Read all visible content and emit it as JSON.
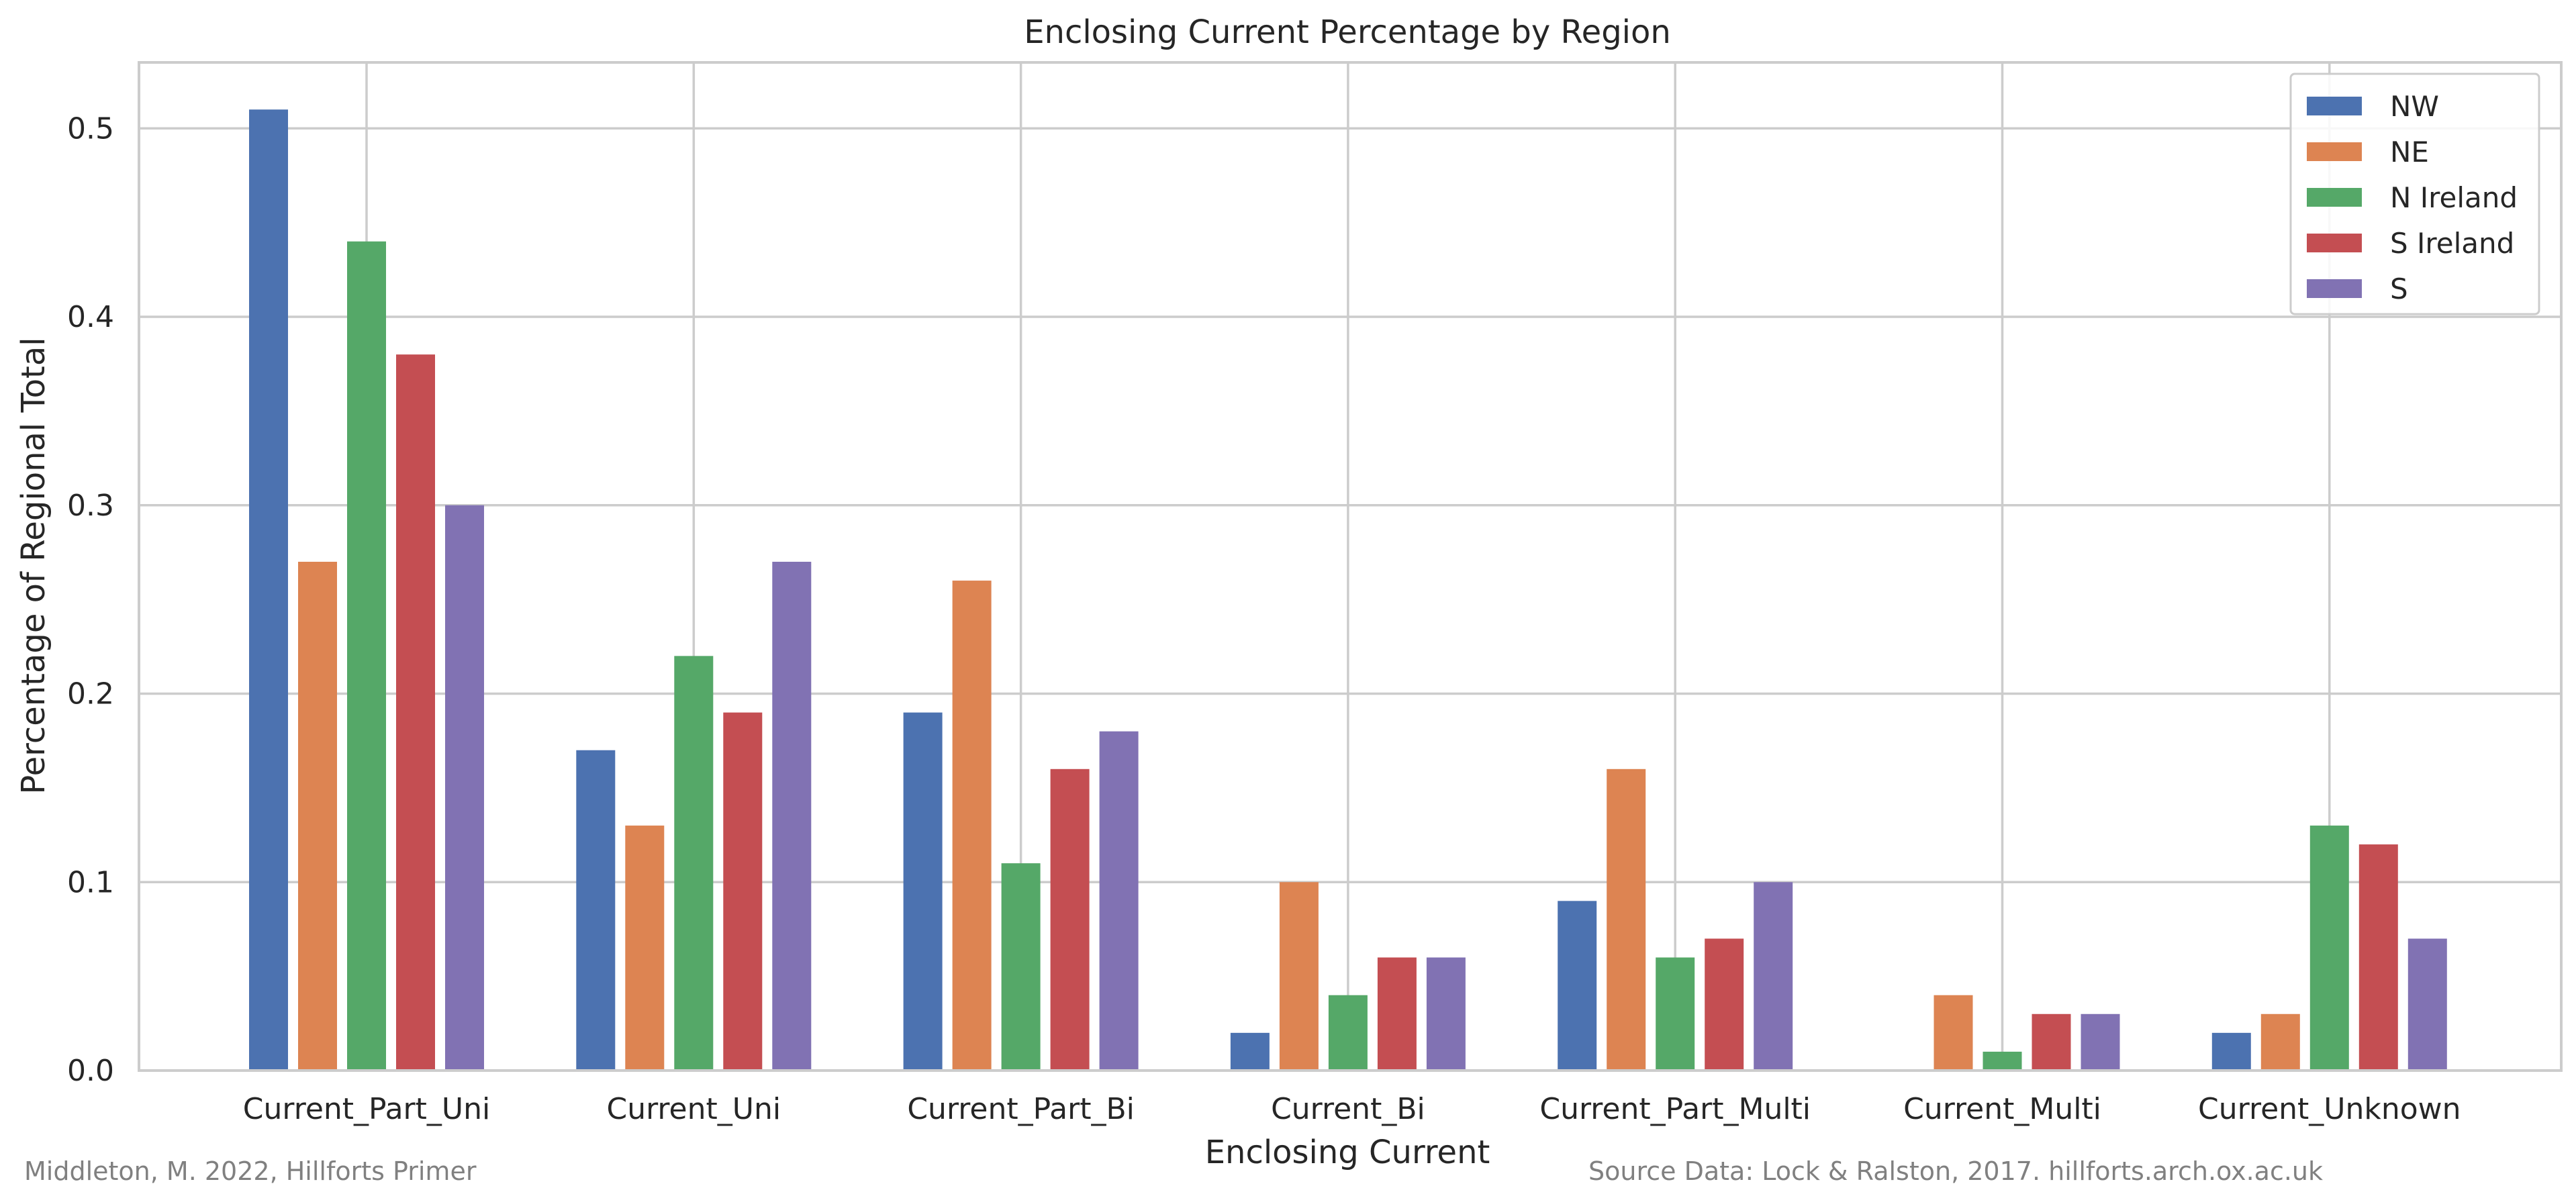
{
  "chart_data": {
    "type": "bar",
    "title": "Enclosing Current Percentage by Region",
    "xlabel": "Enclosing Current",
    "ylabel": "Percentage of Regional Total",
    "ylim": [
      0,
      0.535
    ],
    "yticks": [
      0.0,
      0.1,
      0.2,
      0.3,
      0.4,
      0.5
    ],
    "ytick_labels": [
      "0.0",
      "0.1",
      "0.2",
      "0.3",
      "0.4",
      "0.5"
    ],
    "grid": true,
    "legend_position": "top-right",
    "categories": [
      "Current_Part_Uni",
      "Current_Uni",
      "Current_Part_Bi",
      "Current_Bi",
      "Current_Part_Multi",
      "Current_Multi",
      "Current_Unknown"
    ],
    "series": [
      {
        "name": "NW",
        "color": "#4c72b0",
        "values": [
          0.51,
          0.17,
          0.19,
          0.02,
          0.09,
          0.0,
          0.02
        ]
      },
      {
        "name": "NE",
        "color": "#dd8452",
        "values": [
          0.27,
          0.13,
          0.26,
          0.1,
          0.16,
          0.04,
          0.03
        ]
      },
      {
        "name": "N Ireland",
        "color": "#55a868",
        "values": [
          0.44,
          0.22,
          0.11,
          0.04,
          0.06,
          0.01,
          0.13
        ]
      },
      {
        "name": "S Ireland",
        "color": "#c44e52",
        "values": [
          0.38,
          0.19,
          0.16,
          0.06,
          0.07,
          0.03,
          0.12
        ]
      },
      {
        "name": "S",
        "color": "#8172b3",
        "values": [
          0.3,
          0.27,
          0.18,
          0.06,
          0.1,
          0.03,
          0.07
        ]
      }
    ]
  },
  "footer": {
    "left": "Middleton, M. 2022, Hillforts Primer",
    "right": "Source Data: Lock & Ralston, 2017. hillforts.arch.ox.ac.uk"
  }
}
